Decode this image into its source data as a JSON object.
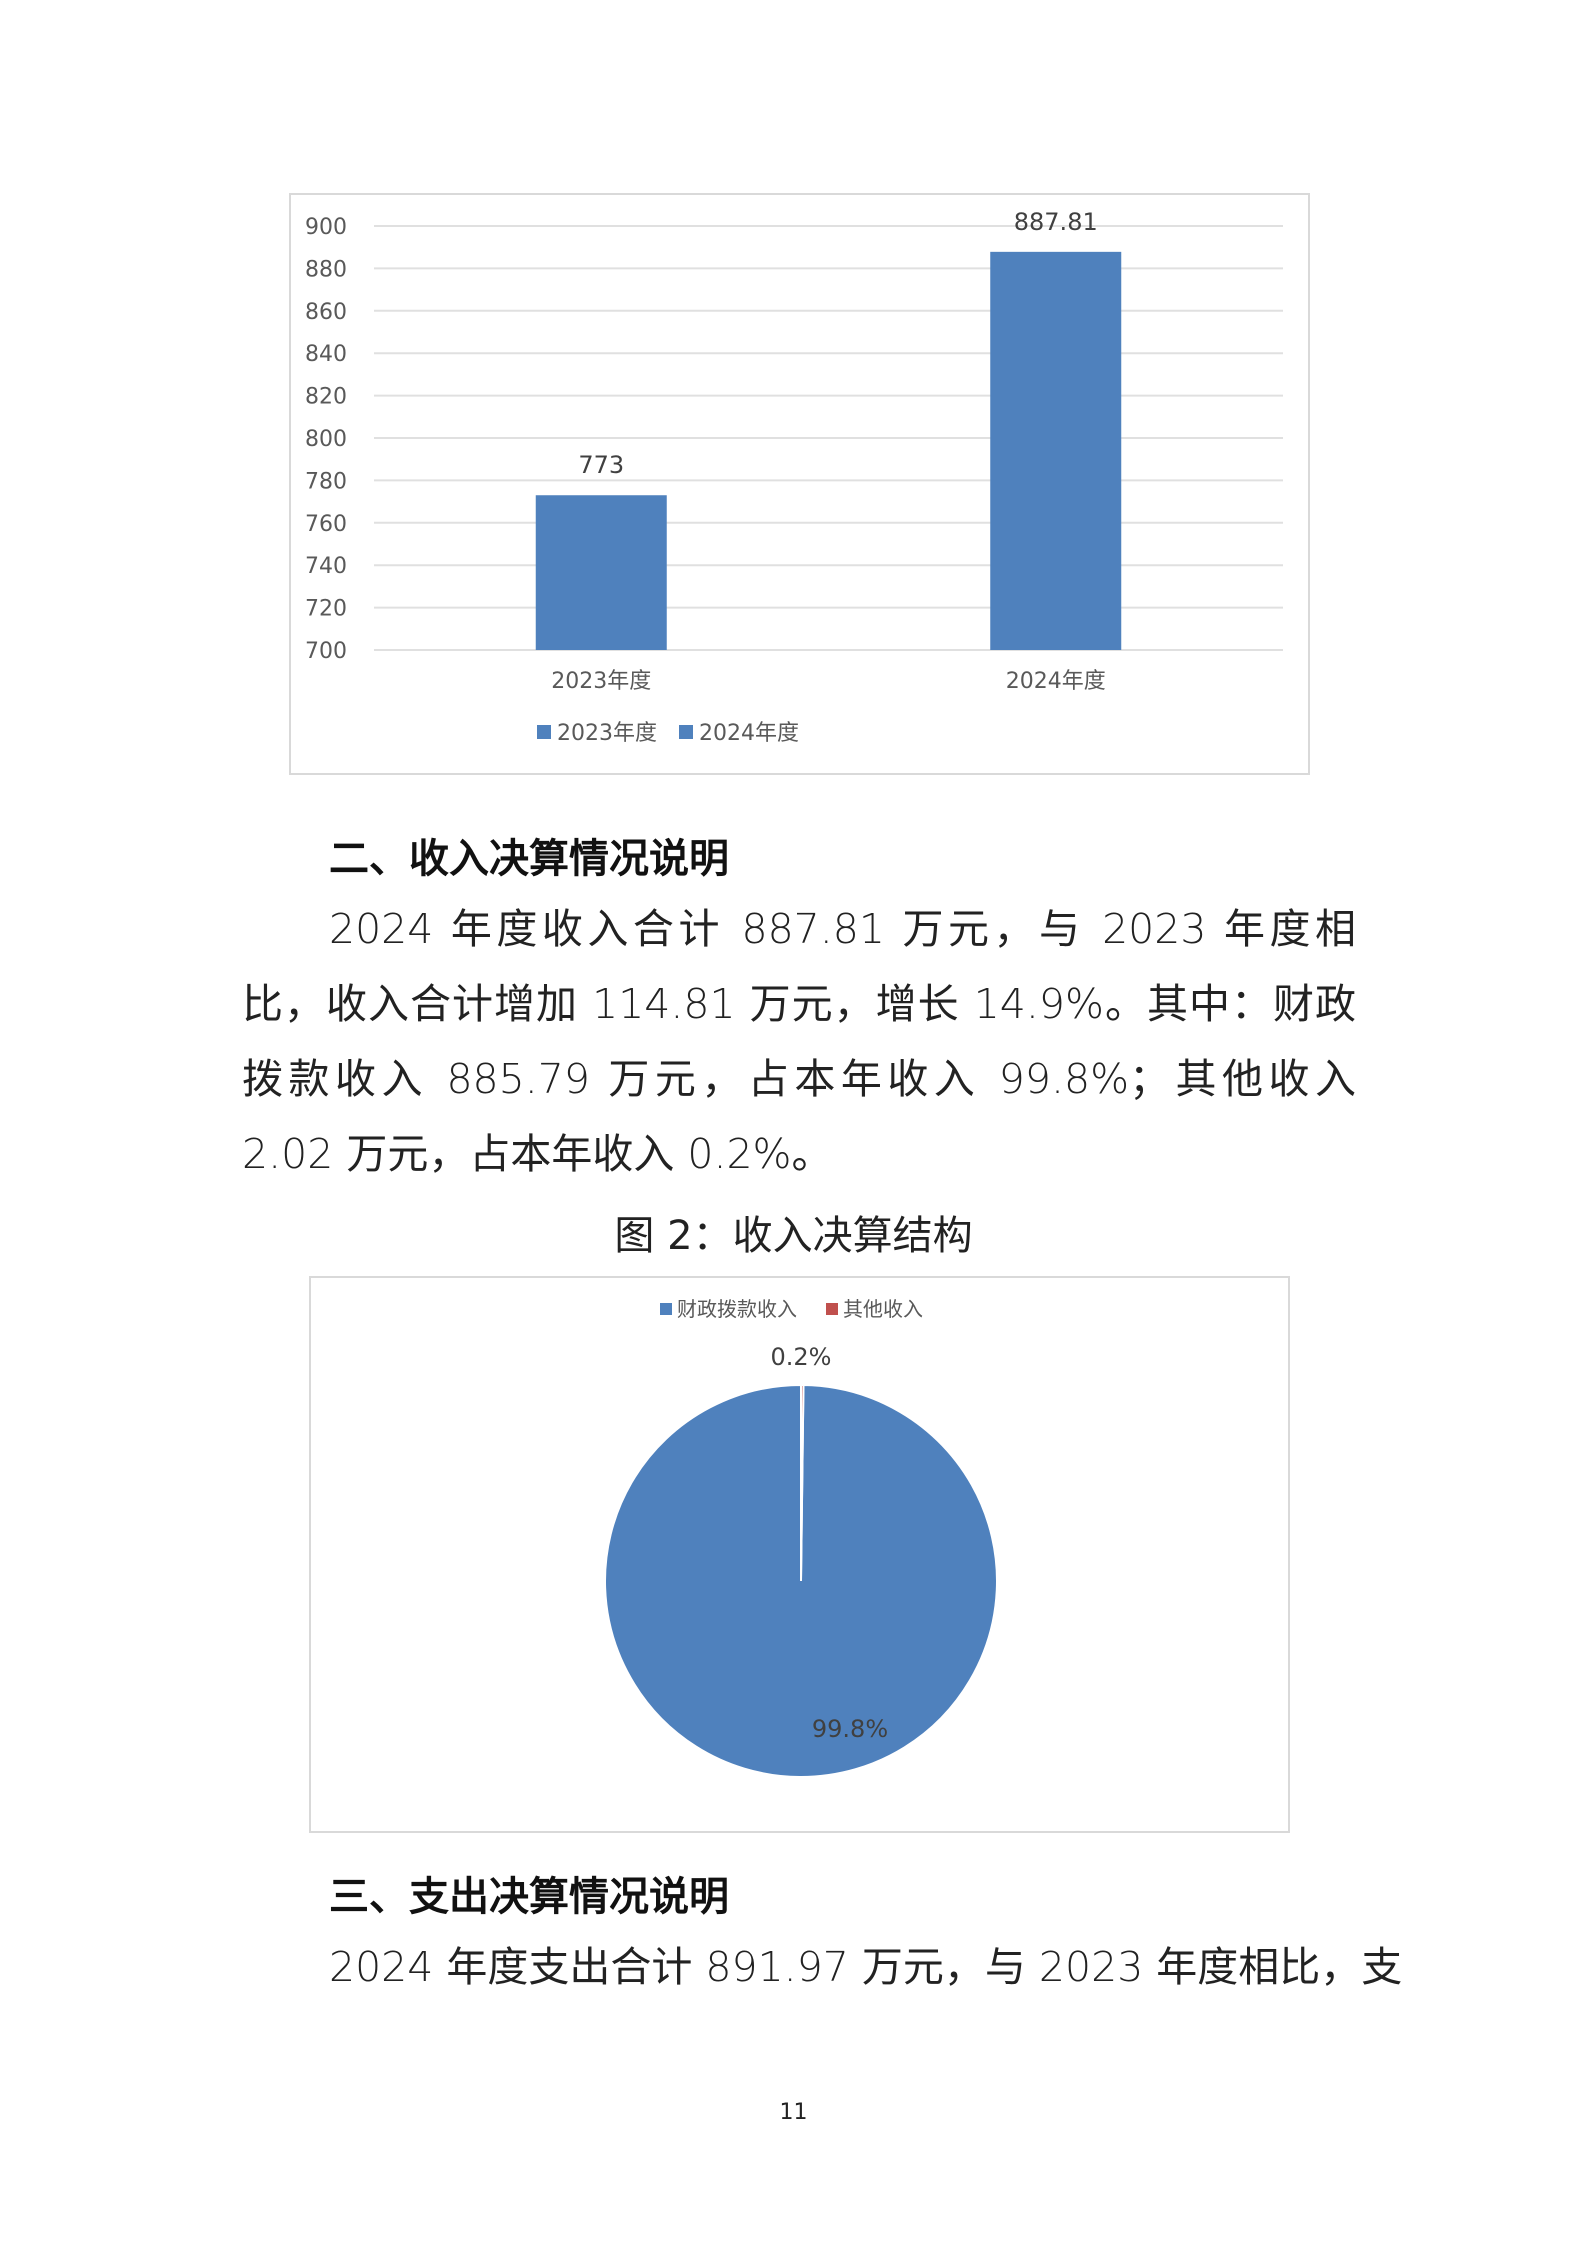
{
  "chart_data": [
    {
      "type": "bar",
      "categories": [
        "2023年度",
        "2024年度"
      ],
      "series": [
        {
          "name": "2023年度",
          "values": [
            773,
            null
          ]
        },
        {
          "name": "2024年度",
          "values": [
            null,
            887.81
          ]
        }
      ],
      "data_labels": [
        "773",
        "887.81"
      ],
      "ylim": [
        700,
        900
      ],
      "yticks": [
        700,
        720,
        740,
        760,
        780,
        800,
        820,
        840,
        860,
        880,
        900
      ],
      "grid": true,
      "legend": "bottom",
      "color": "#4f81bd"
    },
    {
      "type": "pie",
      "title": "图 2：收入决算结构",
      "labels": [
        "财政拨款收入",
        "其他收入"
      ],
      "values": [
        99.8,
        0.2
      ],
      "data_labels": [
        "99.8%",
        "0.2%"
      ],
      "colors": [
        "#4f81bd",
        "#c0504d"
      ],
      "legend": "top"
    }
  ],
  "section2": {
    "heading": "二、收入决算情况说明",
    "body": "2024 年度收入合计 887.81 万元，与 2023 年度相比，收入合计增加 114.81 万元，增长 14.9%。其中：财政拨款收入 885.79 万元，占本年收入 99.8%；其他收入 2.02 万元，占本年收入 0.2%。",
    "figure_caption": "图 2：收入决算结构"
  },
  "section3": {
    "heading": "三、支出决算情况说明",
    "body": "2024 年度支出合计 891.97 万元，与 2023 年度相比，支"
  },
  "page_number": "11"
}
